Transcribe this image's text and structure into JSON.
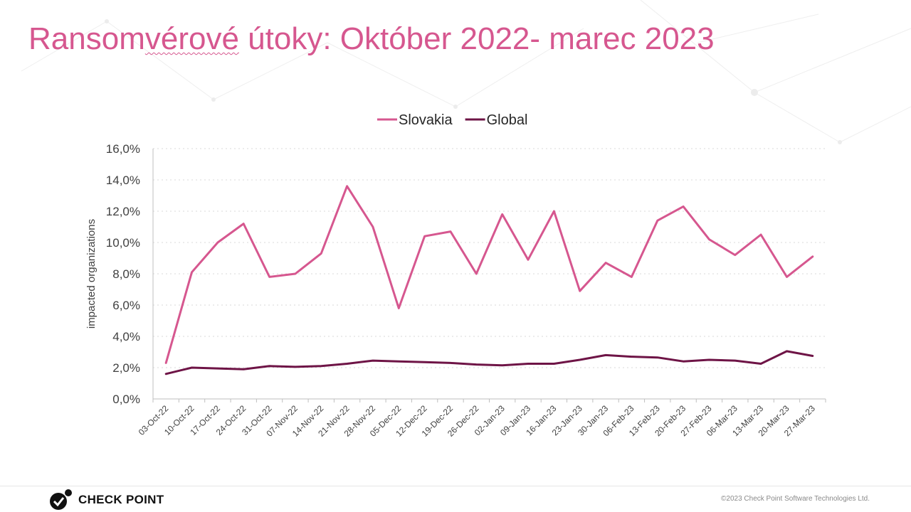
{
  "slide": {
    "title_part1": "Ransom",
    "title_squiggle": "vérové",
    "title_part2": " útoky: Október 2022- marec 2023",
    "logo_text": "CHECK POINT",
    "copyright": "©2023 Check Point Software Technologies Ltd."
  },
  "colors": {
    "title": "#d6578f",
    "slovakia": "#d6578f",
    "global": "#6e1446"
  },
  "chart_data": {
    "type": "line",
    "title": "",
    "xlabel": "",
    "ylabel": "impacted organizations",
    "ylim": [
      0,
      16
    ],
    "y_ticks": [
      "0,0%",
      "2,0%",
      "4,0%",
      "6,0%",
      "8,0%",
      "10,0%",
      "12,0%",
      "14,0%",
      "16,0%"
    ],
    "y_tick_values": [
      0,
      2,
      4,
      6,
      8,
      10,
      12,
      14,
      16
    ],
    "grid": true,
    "legend_position": "top",
    "categories": [
      "03-Oct-22",
      "10-Oct-22",
      "17-Oct-22",
      "24-Oct-22",
      "31-Oct-22",
      "07-Nov-22",
      "14-Nov-22",
      "21-Nov-22",
      "28-Nov-22",
      "05-Dec-22",
      "12-Dec-22",
      "19-Dec-22",
      "26-Dec-22",
      "02-Jan-23",
      "09-Jan-23",
      "16-Jan-23",
      "23-Jan-23",
      "30-Jan-23",
      "06-Feb-23",
      "13-Feb-23",
      "20-Feb-23",
      "27-Feb-23",
      "06-Mar-23",
      "13-Mar-23",
      "20-Mar-23",
      "27-Mar-23"
    ],
    "series": [
      {
        "name": "Slovakia",
        "values": [
          2.3,
          8.1,
          10.0,
          11.2,
          7.8,
          8.0,
          9.3,
          13.6,
          11.0,
          5.8,
          10.4,
          10.7,
          8.0,
          11.8,
          8.9,
          12.0,
          6.9,
          8.7,
          7.8,
          11.4,
          12.3,
          10.2,
          9.2,
          10.5,
          7.8,
          9.1
        ]
      },
      {
        "name": "Global",
        "values": [
          1.6,
          2.0,
          1.95,
          1.9,
          2.1,
          2.05,
          2.1,
          2.25,
          2.45,
          2.4,
          2.35,
          2.3,
          2.2,
          2.15,
          2.25,
          2.25,
          2.5,
          2.8,
          2.7,
          2.65,
          2.4,
          2.5,
          2.45,
          2.25,
          3.05,
          2.75
        ]
      }
    ]
  }
}
